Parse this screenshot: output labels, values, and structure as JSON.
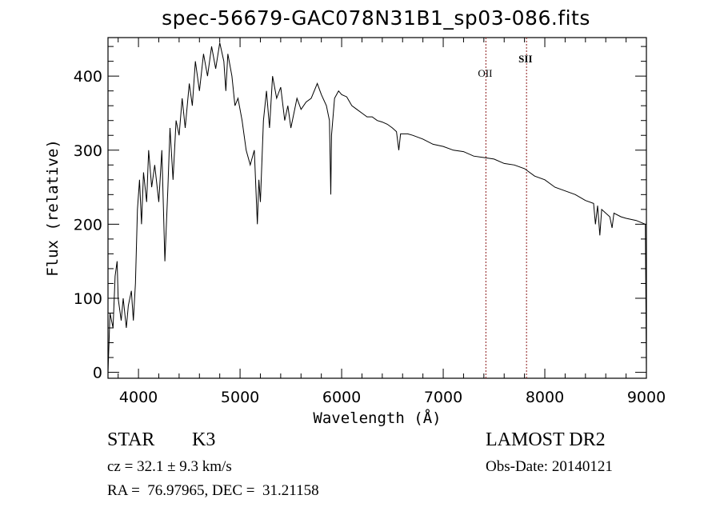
{
  "chart_data": {
    "type": "line",
    "title": "spec-56679-GAC078N31B1_sp03-086.fits",
    "xlabel": "Wavelength (Å)",
    "ylabel": "Flux (relative)",
    "xlim": [
      3700,
      9000
    ],
    "ylim": [
      -8,
      452
    ],
    "xticks": [
      4000,
      5000,
      6000,
      7000,
      8000,
      9000
    ],
    "yticks": [
      0,
      100,
      200,
      300,
      400
    ],
    "grid": false,
    "lines": [
      {
        "label": "OII",
        "x": 7420,
        "color": "#8b1a1a"
      },
      {
        "label": "SII",
        "x": 7820,
        "color": "#8b1a1a"
      }
    ],
    "series": [
      {
        "name": "flux",
        "x": [
          3700,
          3720,
          3750,
          3770,
          3790,
          3800,
          3830,
          3850,
          3880,
          3900,
          3930,
          3950,
          3970,
          3990,
          4010,
          4030,
          4050,
          4080,
          4100,
          4130,
          4160,
          4200,
          4230,
          4260,
          4290,
          4310,
          4340,
          4370,
          4400,
          4430,
          4460,
          4500,
          4530,
          4560,
          4600,
          4640,
          4680,
          4720,
          4760,
          4800,
          4840,
          4860,
          4880,
          4920,
          4950,
          4980,
          5020,
          5060,
          5100,
          5140,
          5170,
          5185,
          5200,
          5230,
          5260,
          5290,
          5320,
          5360,
          5400,
          5440,
          5470,
          5500,
          5530,
          5560,
          5600,
          5650,
          5700,
          5760,
          5800,
          5850,
          5880,
          5893,
          5900,
          5930,
          5970,
          6000,
          6050,
          6100,
          6150,
          6200,
          6250,
          6300,
          6350,
          6400,
          6450,
          6500,
          6540,
          6563,
          6580,
          6650,
          6700,
          6800,
          6900,
          7000,
          7100,
          7200,
          7300,
          7400,
          7500,
          7600,
          7700,
          7800,
          7900,
          8000,
          8100,
          8200,
          8300,
          8400,
          8480,
          8498,
          8520,
          8542,
          8560,
          8640,
          8662,
          8680,
          8750,
          8800,
          8900,
          8990,
          9000
        ],
        "y": [
          0,
          80,
          60,
          130,
          150,
          100,
          70,
          100,
          60,
          90,
          110,
          70,
          120,
          220,
          260,
          200,
          270,
          230,
          300,
          250,
          280,
          230,
          300,
          150,
          250,
          330,
          260,
          340,
          320,
          370,
          330,
          390,
          360,
          420,
          380,
          430,
          400,
          440,
          410,
          445,
          420,
          380,
          430,
          400,
          360,
          370,
          340,
          300,
          280,
          300,
          200,
          260,
          230,
          340,
          380,
          330,
          400,
          370,
          385,
          340,
          360,
          330,
          350,
          370,
          355,
          365,
          370,
          390,
          375,
          360,
          340,
          240,
          320,
          370,
          380,
          375,
          372,
          360,
          355,
          350,
          345,
          345,
          340,
          338,
          335,
          330,
          325,
          300,
          322,
          322,
          320,
          315,
          308,
          305,
          300,
          298,
          292,
          290,
          288,
          282,
          280,
          275,
          265,
          260,
          250,
          245,
          240,
          232,
          228,
          200,
          225,
          185,
          220,
          210,
          195,
          215,
          210,
          208,
          205,
          200,
          0
        ]
      }
    ]
  },
  "annotations": {
    "object_class": "STAR",
    "subclass": "K3",
    "survey": "LAMOST DR2",
    "redshift": "cz = 32.1 ± 9.3 km/s",
    "obs_date": "Obs-Date: 20140121",
    "coords": "RA =  76.97965, DEC =  31.21158"
  }
}
